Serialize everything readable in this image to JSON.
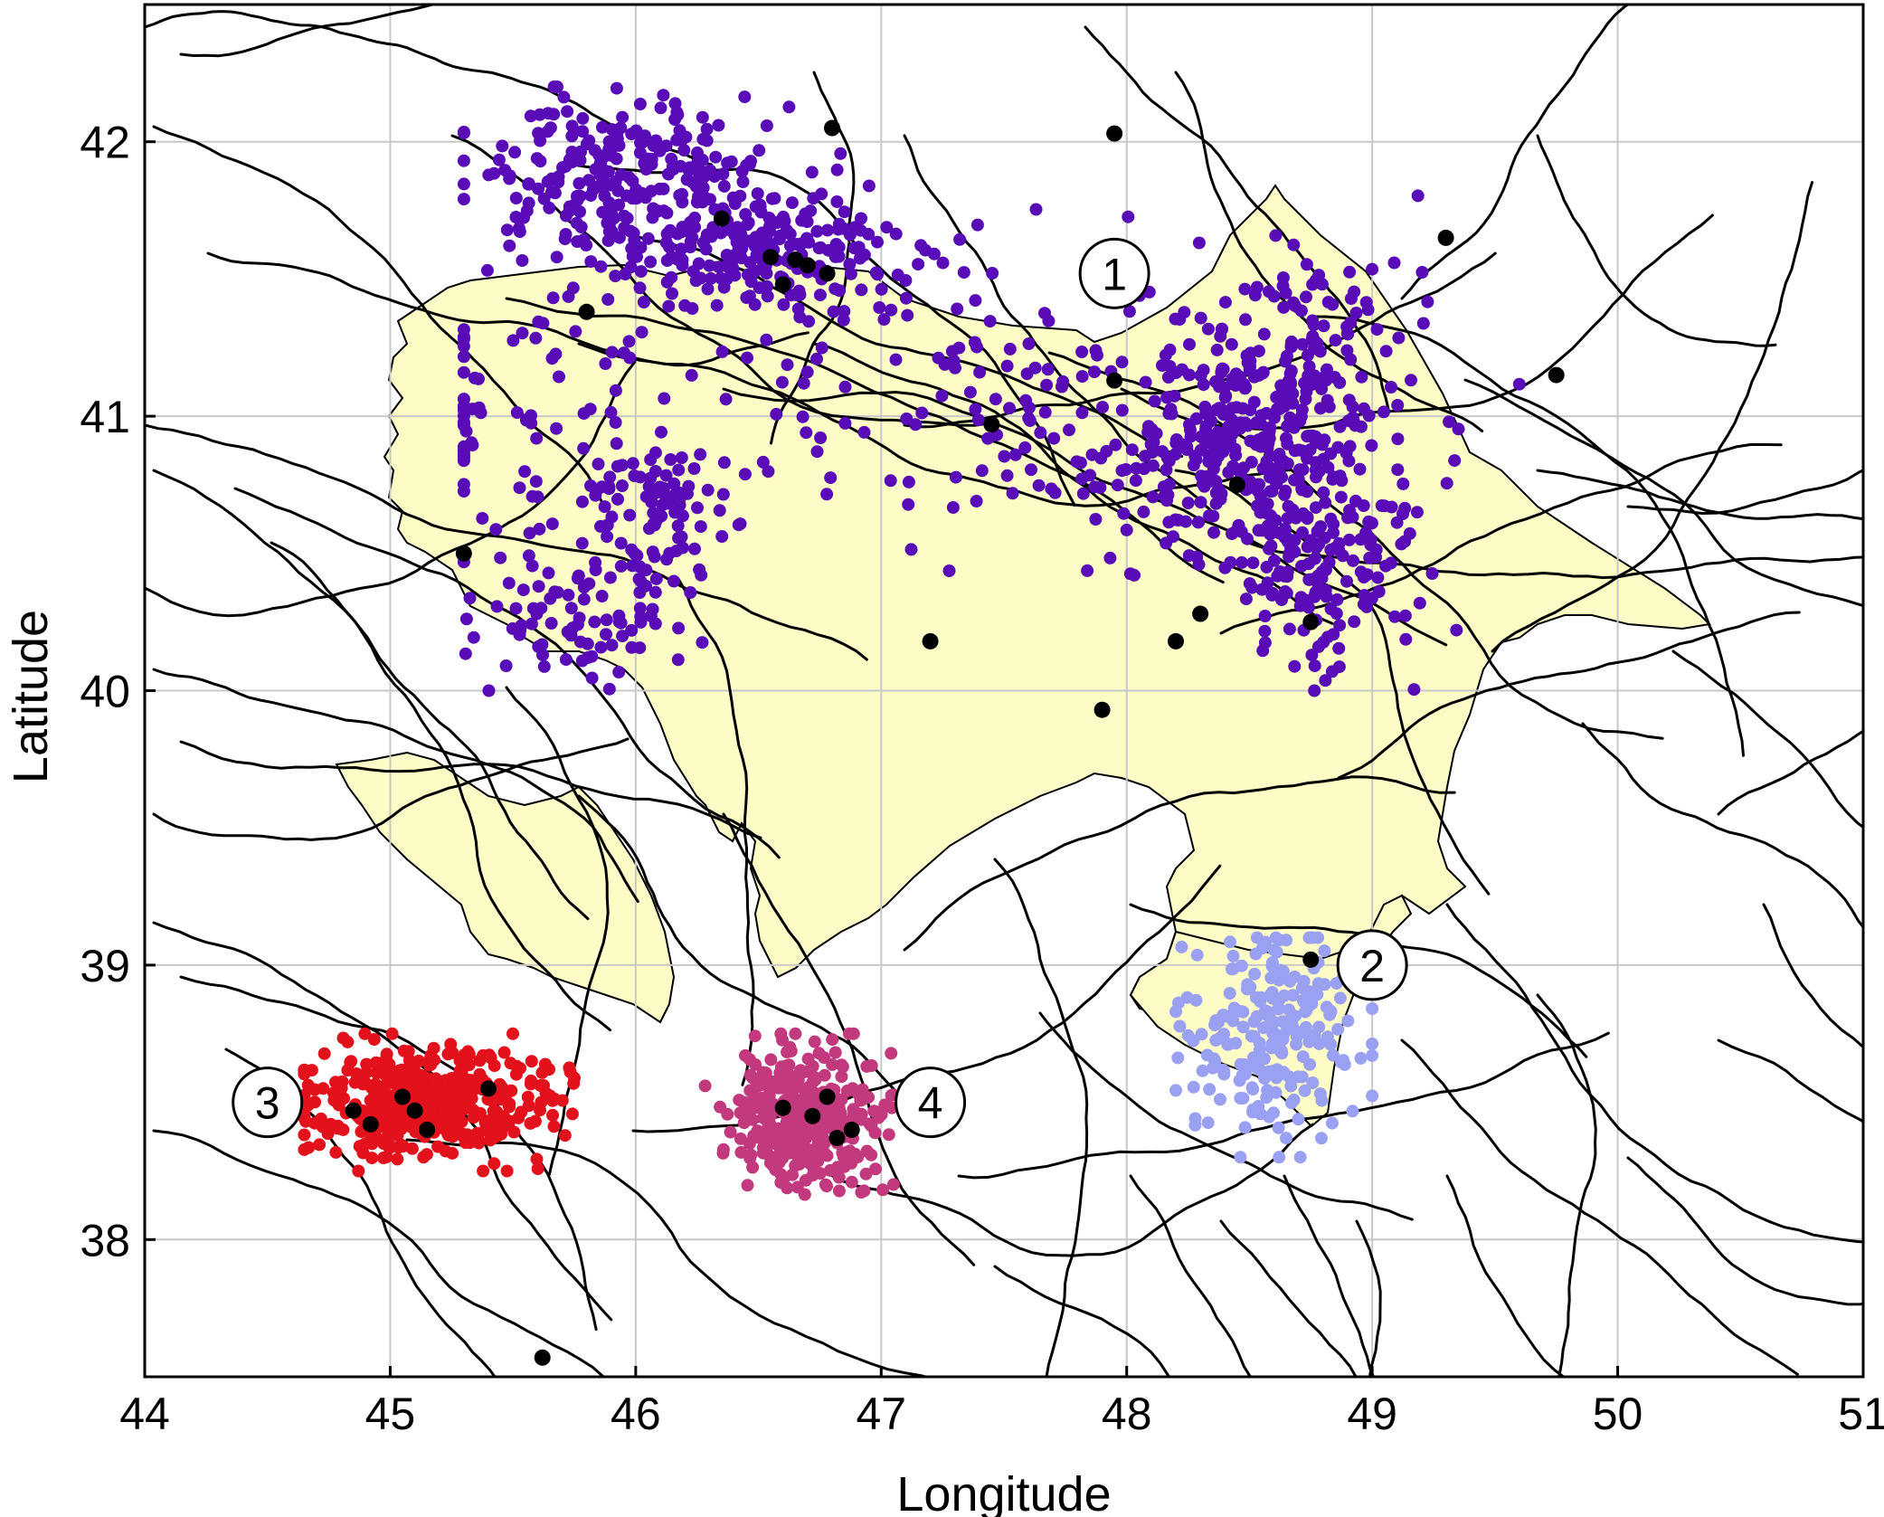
{
  "chart_data": {
    "type": "scatter",
    "title": "",
    "xlabel": "Longitude",
    "ylabel": "Latitude",
    "xlim": [
      44,
      51
    ],
    "ylim": [
      37.5,
      42.5
    ],
    "x_ticks": [
      "44",
      "45",
      "46",
      "47",
      "48",
      "49",
      "50",
      "51"
    ],
    "y_ticks": [
      "38",
      "39",
      "40",
      "41",
      "42"
    ],
    "grid": true,
    "colors": {
      "zone1": "#5a0bb8",
      "zone2": "#9aa0f2",
      "zone3": "#e3111c",
      "zone4": "#c2397e",
      "large_events": "#000000",
      "land": "#fdfcc6",
      "faults": "#000000",
      "grid": "#c8c8c8"
    },
    "zones": [
      {
        "label": "1",
        "lon": 47.95,
        "lat": 41.52
      },
      {
        "label": "2",
        "lon": 49.0,
        "lat": 39.0
      },
      {
        "label": "3",
        "lon": 44.5,
        "lat": 38.5
      },
      {
        "label": "4",
        "lon": 47.2,
        "lat": 38.5
      }
    ],
    "large_events": [
      [
        46.8,
        42.05
      ],
      [
        47.95,
        42.03
      ],
      [
        49.3,
        41.65
      ],
      [
        49.75,
        41.15
      ],
      [
        46.35,
        41.72
      ],
      [
        46.55,
        41.58
      ],
      [
        46.65,
        41.57
      ],
      [
        46.7,
        41.55
      ],
      [
        46.78,
        41.52
      ],
      [
        46.6,
        41.48
      ],
      [
        45.8,
        41.38
      ],
      [
        47.95,
        41.13
      ],
      [
        47.45,
        40.97
      ],
      [
        48.45,
        40.75
      ],
      [
        45.3,
        40.5
      ],
      [
        48.75,
        40.25
      ],
      [
        48.3,
        40.28
      ],
      [
        48.2,
        40.18
      ],
      [
        47.2,
        40.18
      ],
      [
        47.9,
        39.93
      ],
      [
        48.75,
        39.02
      ],
      [
        45.4,
        38.55
      ],
      [
        45.05,
        38.52
      ],
      [
        44.85,
        38.47
      ],
      [
        45.1,
        38.47
      ],
      [
        44.92,
        38.42
      ],
      [
        45.15,
        38.4
      ],
      [
        46.6,
        38.48
      ],
      [
        46.72,
        38.45
      ],
      [
        46.78,
        38.52
      ],
      [
        46.82,
        38.37
      ],
      [
        46.88,
        38.4
      ],
      [
        45.62,
        37.57
      ]
    ],
    "clusters": [
      {
        "zone": "1",
        "lon_range": [
          45.3,
          49.6
        ],
        "lat_range": [
          40.0,
          42.2
        ],
        "count": 1400
      },
      {
        "zone": "2",
        "lon_range": [
          48.2,
          49.0
        ],
        "lat_range": [
          38.3,
          39.1
        ],
        "count": 220
      },
      {
        "zone": "3",
        "lon_range": [
          44.65,
          45.75
        ],
        "lat_range": [
          38.25,
          38.75
        ],
        "count": 420
      },
      {
        "zone": "4",
        "lon_range": [
          46.2,
          47.05
        ],
        "lat_range": [
          38.15,
          38.75
        ],
        "count": 360
      }
    ]
  }
}
